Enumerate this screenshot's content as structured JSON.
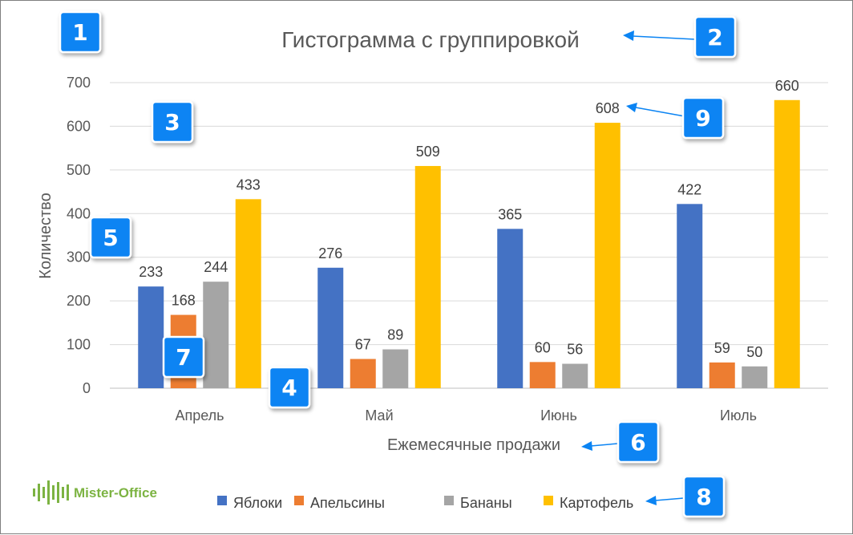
{
  "chart_data": {
    "type": "bar",
    "title": "Гистограмма с группировкой",
    "xlabel": "Ежемесячные продажи",
    "ylabel": "Количество",
    "categories": [
      "Апрель",
      "Май",
      "Июнь",
      "Июль"
    ],
    "yticks": [
      0,
      100,
      200,
      300,
      400,
      500,
      600,
      700
    ],
    "ylim": [
      0,
      700
    ],
    "grid": true,
    "legend_position": "bottom",
    "series": [
      {
        "name": "Яблоки",
        "color": "#4472c4",
        "values": [
          233,
          276,
          365,
          422
        ]
      },
      {
        "name": "Апельсины",
        "color": "#ed7d31",
        "values": [
          168,
          67,
          60,
          59
        ]
      },
      {
        "name": "Бананы",
        "color": "#a5a5a5",
        "values": [
          244,
          89,
          56,
          50
        ]
      },
      {
        "name": "Картофель",
        "color": "#ffc000",
        "values": [
          433,
          509,
          608,
          660
        ]
      }
    ]
  },
  "callouts": [
    "1",
    "2",
    "3",
    "4",
    "5",
    "6",
    "7",
    "8",
    "9"
  ],
  "brand": {
    "name": "Mister-Office",
    "color": "#7cb342"
  },
  "colors": {
    "callout": "#0b84f3",
    "frame": "#7f7f7f"
  }
}
